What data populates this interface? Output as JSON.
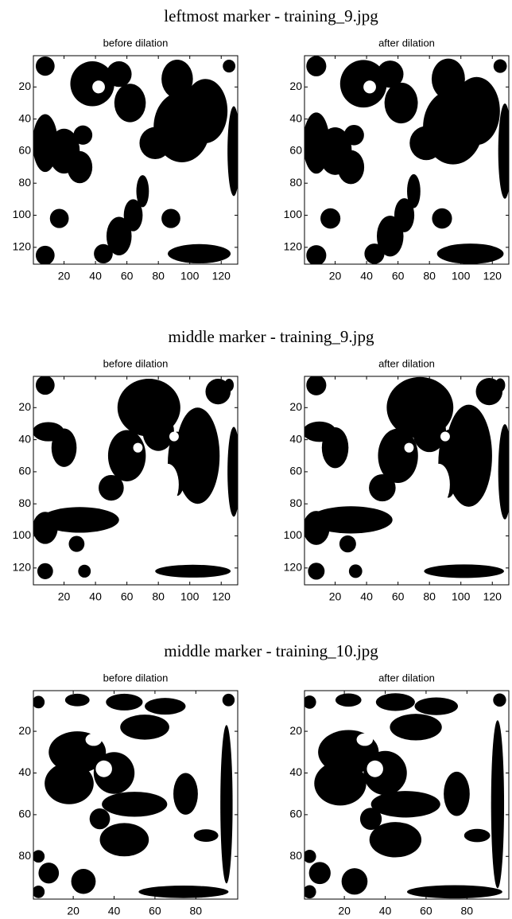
{
  "figures": [
    {
      "title": "leftmost marker - training_9.jpg",
      "panels": [
        {
          "title": "before dilation",
          "xlim": [
            0.5,
            130.5
          ],
          "ylim": [
            0.5,
            130.5
          ],
          "xticks": [
            20,
            40,
            60,
            80,
            100,
            120
          ],
          "yticks": [
            20,
            40,
            60,
            80,
            100,
            120
          ]
        },
        {
          "title": "after dilation",
          "xlim": [
            0.5,
            130.5
          ],
          "ylim": [
            0.5,
            130.5
          ],
          "xticks": [
            20,
            40,
            60,
            80,
            100,
            120
          ],
          "yticks": [
            20,
            40,
            60,
            80,
            100,
            120
          ]
        }
      ]
    },
    {
      "title": "middle marker - training_9.jpg",
      "panels": [
        {
          "title": "before dilation",
          "xlim": [
            0.5,
            130.5
          ],
          "ylim": [
            0.5,
            130.5
          ],
          "xticks": [
            20,
            40,
            60,
            80,
            100,
            120
          ],
          "yticks": [
            20,
            40,
            60,
            80,
            100,
            120
          ]
        },
        {
          "title": "after dilation",
          "xlim": [
            0.5,
            130.5
          ],
          "ylim": [
            0.5,
            130.5
          ],
          "xticks": [
            20,
            40,
            60,
            80,
            100,
            120
          ],
          "yticks": [
            20,
            40,
            60,
            80,
            100,
            120
          ]
        }
      ]
    },
    {
      "title": "middle marker - training_10.jpg",
      "panels": [
        {
          "title": "before dilation",
          "xlim": [
            0.5,
            100.5
          ],
          "ylim": [
            0.5,
            100.5
          ],
          "xticks": [
            20,
            40,
            60,
            80
          ],
          "yticks": [
            20,
            40,
            60,
            80
          ]
        },
        {
          "title": "after dilation",
          "xlim": [
            0.5,
            100.5
          ],
          "ylim": [
            0.5,
            100.5
          ],
          "xticks": [
            20,
            40,
            60,
            80
          ],
          "yticks": [
            20,
            40,
            60,
            80
          ]
        }
      ]
    }
  ]
}
